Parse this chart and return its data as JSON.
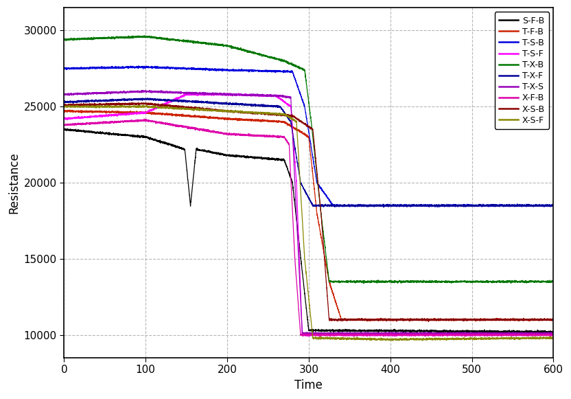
{
  "title": "",
  "xlabel": "Time",
  "ylabel": "Resistance",
  "xlim": [
    0,
    600
  ],
  "ylim": [
    8500,
    31500
  ],
  "xticks": [
    0,
    100,
    200,
    300,
    400,
    500,
    600
  ],
  "yticks": [
    10000,
    15000,
    20000,
    25000,
    30000
  ],
  "background_color": "#ffffff",
  "grid_color": "#b0b0b0",
  "series": [
    {
      "label": "S-F-B",
      "color": "#000000",
      "segments": [
        {
          "t": 0,
          "y": 23500
        },
        {
          "t": 100,
          "y": 23000
        },
        {
          "t": 148,
          "y": 22200
        },
        {
          "t": 155,
          "y": 18500
        },
        {
          "t": 162,
          "y": 22200
        },
        {
          "t": 200,
          "y": 21800
        },
        {
          "t": 270,
          "y": 21500
        },
        {
          "t": 280,
          "y": 20000
        },
        {
          "t": 300,
          "y": 10300
        },
        {
          "t": 600,
          "y": 10200
        }
      ]
    },
    {
      "label": "T-F-B",
      "color": "#cc2200",
      "segments": [
        {
          "t": 0,
          "y": 24700
        },
        {
          "t": 100,
          "y": 24600
        },
        {
          "t": 200,
          "y": 24200
        },
        {
          "t": 270,
          "y": 24000
        },
        {
          "t": 300,
          "y": 23000
        },
        {
          "t": 310,
          "y": 18000
        },
        {
          "t": 325,
          "y": 13500
        },
        {
          "t": 340,
          "y": 11000
        },
        {
          "t": 600,
          "y": 11000
        }
      ]
    },
    {
      "label": "T-S-B",
      "color": "#0000dd",
      "segments": [
        {
          "t": 0,
          "y": 27500
        },
        {
          "t": 100,
          "y": 27600
        },
        {
          "t": 200,
          "y": 27400
        },
        {
          "t": 280,
          "y": 27300
        },
        {
          "t": 295,
          "y": 25000
        },
        {
          "t": 310,
          "y": 20000
        },
        {
          "t": 330,
          "y": 18500
        },
        {
          "t": 600,
          "y": 18500
        }
      ]
    },
    {
      "label": "T-S-F",
      "color": "#ff00ff",
      "segments": [
        {
          "t": 0,
          "y": 24200
        },
        {
          "t": 100,
          "y": 24600
        },
        {
          "t": 150,
          "y": 25800
        },
        {
          "t": 200,
          "y": 25800
        },
        {
          "t": 260,
          "y": 25700
        },
        {
          "t": 278,
          "y": 25000
        },
        {
          "t": 285,
          "y": 20000
        },
        {
          "t": 292,
          "y": 10000
        },
        {
          "t": 600,
          "y": 10000
        }
      ]
    },
    {
      "label": "T-X-B",
      "color": "#007700",
      "segments": [
        {
          "t": 0,
          "y": 29400
        },
        {
          "t": 100,
          "y": 29600
        },
        {
          "t": 200,
          "y": 29000
        },
        {
          "t": 270,
          "y": 28000
        },
        {
          "t": 295,
          "y": 27400
        },
        {
          "t": 303,
          "y": 24000
        },
        {
          "t": 315,
          "y": 18000
        },
        {
          "t": 325,
          "y": 13500
        },
        {
          "t": 600,
          "y": 13500
        }
      ]
    },
    {
      "label": "T-X-F",
      "color": "#000099",
      "segments": [
        {
          "t": 0,
          "y": 25300
        },
        {
          "t": 100,
          "y": 25500
        },
        {
          "t": 200,
          "y": 25200
        },
        {
          "t": 265,
          "y": 25000
        },
        {
          "t": 278,
          "y": 24000
        },
        {
          "t": 290,
          "y": 20000
        },
        {
          "t": 305,
          "y": 18500
        },
        {
          "t": 600,
          "y": 18500
        }
      ]
    },
    {
      "label": "T-X-S",
      "color": "#9900bb",
      "segments": [
        {
          "t": 0,
          "y": 25800
        },
        {
          "t": 100,
          "y": 26000
        },
        {
          "t": 200,
          "y": 25800
        },
        {
          "t": 265,
          "y": 25700
        },
        {
          "t": 278,
          "y": 25600
        },
        {
          "t": 283,
          "y": 20000
        },
        {
          "t": 292,
          "y": 10100
        },
        {
          "t": 600,
          "y": 10100
        }
      ]
    },
    {
      "label": "X-F-B",
      "color": "#dd00aa",
      "segments": [
        {
          "t": 0,
          "y": 23800
        },
        {
          "t": 100,
          "y": 24100
        },
        {
          "t": 200,
          "y": 23200
        },
        {
          "t": 270,
          "y": 23000
        },
        {
          "t": 276,
          "y": 22500
        },
        {
          "t": 283,
          "y": 15000
        },
        {
          "t": 290,
          "y": 10000
        },
        {
          "t": 600,
          "y": 10000
        }
      ]
    },
    {
      "label": "X-S-B",
      "color": "#880000",
      "segments": [
        {
          "t": 0,
          "y": 25100
        },
        {
          "t": 100,
          "y": 25200
        },
        {
          "t": 200,
          "y": 24700
        },
        {
          "t": 280,
          "y": 24400
        },
        {
          "t": 305,
          "y": 23500
        },
        {
          "t": 315,
          "y": 18000
        },
        {
          "t": 325,
          "y": 11000
        },
        {
          "t": 600,
          "y": 11000
        }
      ]
    },
    {
      "label": "X-S-F",
      "color": "#888800",
      "segments": [
        {
          "t": 0,
          "y": 25000
        },
        {
          "t": 100,
          "y": 25000
        },
        {
          "t": 200,
          "y": 24700
        },
        {
          "t": 270,
          "y": 24500
        },
        {
          "t": 285,
          "y": 24000
        },
        {
          "t": 295,
          "y": 15000
        },
        {
          "t": 305,
          "y": 9800
        },
        {
          "t": 400,
          "y": 9700
        },
        {
          "t": 600,
          "y": 9800
        }
      ]
    }
  ]
}
